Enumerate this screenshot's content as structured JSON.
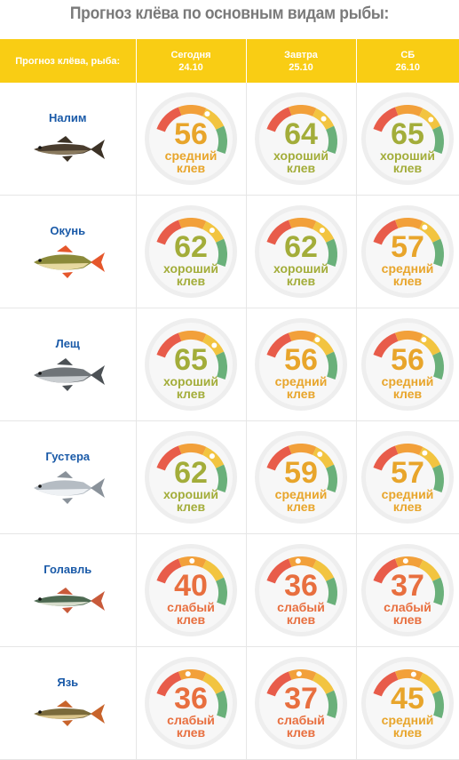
{
  "title": "Прогноз клёва по основным видам рыбы:",
  "header": {
    "fish_col": "Прогноз клёва, рыба:",
    "days": [
      {
        "name": "Сегодня",
        "date": "24.10"
      },
      {
        "name": "Завтра",
        "date": "25.10"
      },
      {
        "name": "СБ",
        "date": "26.10"
      }
    ]
  },
  "rating_colors": {
    "хороший клев": "#a3ad3a",
    "средний клев": "#e8a52b",
    "слабый клев": "#e86f3f"
  },
  "rows": [
    {
      "fish": "Налим",
      "icon": "burbot-fish",
      "scores": [
        {
          "value": 56,
          "label": "средний клев"
        },
        {
          "value": 64,
          "label": "хороший клев"
        },
        {
          "value": 65,
          "label": "хороший клев"
        }
      ]
    },
    {
      "fish": "Окунь",
      "icon": "perch-fish",
      "scores": [
        {
          "value": 62,
          "label": "хороший клев"
        },
        {
          "value": 62,
          "label": "хороший клев"
        },
        {
          "value": 57,
          "label": "средний клев"
        }
      ]
    },
    {
      "fish": "Лещ",
      "icon": "bream-fish",
      "scores": [
        {
          "value": 65,
          "label": "хороший клев"
        },
        {
          "value": 56,
          "label": "средний клев"
        },
        {
          "value": 56,
          "label": "средний клев"
        }
      ]
    },
    {
      "fish": "Густера",
      "icon": "silver-bream-fish",
      "scores": [
        {
          "value": 62,
          "label": "хороший клев"
        },
        {
          "value": 59,
          "label": "средний клев"
        },
        {
          "value": 57,
          "label": "средний клев"
        }
      ]
    },
    {
      "fish": "Голавль",
      "icon": "chub-fish",
      "scores": [
        {
          "value": 40,
          "label": "слабый клев"
        },
        {
          "value": 36,
          "label": "слабый клев"
        },
        {
          "value": 37,
          "label": "слабый клев"
        }
      ]
    },
    {
      "fish": "Язь",
      "icon": "ide-fish",
      "scores": [
        {
          "value": 36,
          "label": "слабый клев"
        },
        {
          "value": 37,
          "label": "слабый клев"
        },
        {
          "value": 45,
          "label": "средний клев"
        }
      ]
    }
  ]
}
